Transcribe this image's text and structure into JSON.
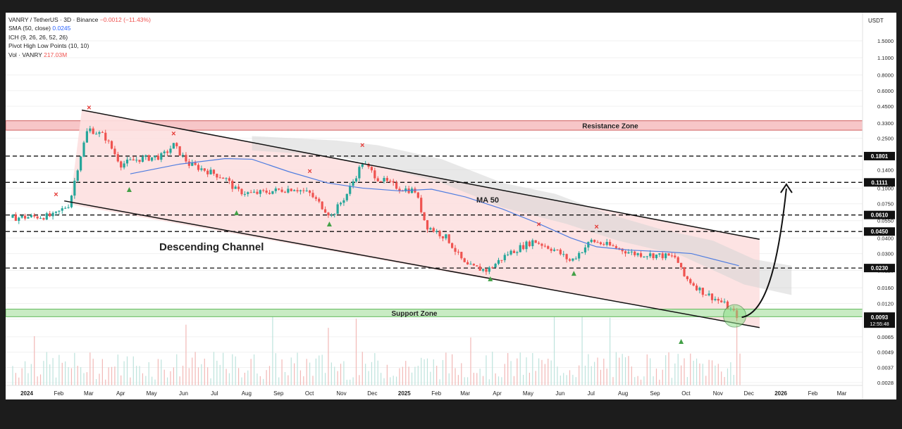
{
  "legend": {
    "symbol_line": "VANRY / TetherUS · 3D · Binance",
    "change": "−0.0012 (−11.43%)",
    "sma_label": "SMA (50, close)",
    "sma_value": "0.0245",
    "ich_label": "ICH (9, 26, 26, 52, 26)",
    "pivot_label": "Pivot High Low Points (10, 10)",
    "vol_label": "Vol · VANRY",
    "vol_value": "217.03M"
  },
  "colors": {
    "up": "#26a69a",
    "down": "#ef5350",
    "sma": "#4f7de0",
    "resistance_fill": "#f7c6c8",
    "support_fill": "#c8ebc3",
    "channel_fill": "#fde0e0",
    "cloud": "#d6d6d6"
  },
  "chart_data": {
    "type": "candlestick",
    "price_axis_unit": "USDT",
    "y_scale": "log",
    "y_ticks": [
      "1.5000",
      "1.1000",
      "0.8000",
      "0.6000",
      "0.4500",
      "0.3300",
      "0.2500",
      "0.1800",
      "0.1400",
      "0.1000",
      "0.0750",
      "0.0550",
      "0.0400",
      "0.0300",
      "0.0220",
      "0.0160",
      "0.0120",
      "0.0090",
      "0.0065",
      "0.0049",
      "0.0037",
      "0.0028"
    ],
    "x_ticks": [
      "2024",
      "Feb",
      "Mar",
      "Apr",
      "May",
      "Jun",
      "Jul",
      "Aug",
      "Sep",
      "Oct",
      "Nov",
      "Dec",
      "2025",
      "Feb",
      "Mar",
      "Apr",
      "May",
      "Jun",
      "Jul",
      "Aug",
      "Sep",
      "Oct",
      "Nov",
      "Dec",
      "2026",
      "Feb",
      "Mar"
    ],
    "x_domain": [
      "2024-01-01",
      "2026-03-28"
    ],
    "levels": [
      {
        "label": "0.1801",
        "value": 0.1801
      },
      {
        "label": "0.1111",
        "value": 0.1111
      },
      {
        "label": "0.0610",
        "value": 0.061
      },
      {
        "label": "0.0450",
        "value": 0.045
      },
      {
        "label": "0.0230",
        "value": 0.023
      }
    ],
    "current_price": {
      "label": "0.0093",
      "value": 0.0093,
      "countdown": "12:55:48"
    },
    "zones": [
      {
        "name": "Resistance Zone",
        "low": 0.29,
        "high": 0.345
      },
      {
        "name": "Support Zone",
        "low": 0.0094,
        "high": 0.0108
      }
    ],
    "channel": {
      "label": "Descending Channel",
      "upper": [
        [
          "2024-03-08",
          0.42
        ],
        [
          "2025-12-25",
          0.039
        ]
      ],
      "lower": [
        [
          "2024-02-20",
          0.079
        ],
        [
          "2025-12-25",
          0.0077
        ]
      ]
    },
    "ma_label": "MA 50",
    "sma50": [
      [
        "2024-04-24",
        0.13
      ],
      [
        "2024-06-10",
        0.155
      ],
      [
        "2024-07-25",
        0.172
      ],
      [
        "2024-08-20",
        0.17
      ],
      [
        "2024-09-25",
        0.135
      ],
      [
        "2024-11-01",
        0.11
      ],
      [
        "2024-12-05",
        0.1
      ],
      [
        "2025-01-10",
        0.095
      ],
      [
        "2025-02-10",
        0.098
      ],
      [
        "2025-03-15",
        0.085
      ],
      [
        "2025-04-20",
        0.068
      ],
      [
        "2025-05-25",
        0.052
      ],
      [
        "2025-06-25",
        0.04
      ],
      [
        "2025-07-20",
        0.034
      ],
      [
        "2025-08-20",
        0.032
      ],
      [
        "2025-09-25",
        0.031
      ],
      [
        "2025-10-20",
        0.03
      ],
      [
        "2025-12-05",
        0.024
      ]
    ],
    "series": [
      {
        "name": "price",
        "values": [
          [
            "2024-01-01",
            0.058
          ],
          [
            "2024-02-10",
            0.06
          ],
          [
            "2024-02-25",
            0.075
          ],
          [
            "2024-03-05",
            0.16
          ],
          [
            "2024-03-14",
            0.3
          ],
          [
            "2024-03-30",
            0.26
          ],
          [
            "2024-04-15",
            0.155
          ],
          [
            "2024-05-01",
            0.17
          ],
          [
            "2024-05-25",
            0.18
          ],
          [
            "2024-06-05",
            0.22
          ],
          [
            "2024-06-20",
            0.155
          ],
          [
            "2024-07-05",
            0.14
          ],
          [
            "2024-07-25",
            0.12
          ],
          [
            "2024-08-05",
            0.095
          ],
          [
            "2024-08-20",
            0.09
          ],
          [
            "2024-09-10",
            0.095
          ],
          [
            "2024-09-30",
            0.1
          ],
          [
            "2024-10-15",
            0.09
          ],
          [
            "2024-11-05",
            0.06
          ],
          [
            "2024-11-20",
            0.09
          ],
          [
            "2024-12-05",
            0.16
          ],
          [
            "2024-12-20",
            0.12
          ],
          [
            "2025-01-10",
            0.1
          ],
          [
            "2025-01-25",
            0.095
          ],
          [
            "2025-02-05",
            0.05
          ],
          [
            "2025-02-25",
            0.04
          ],
          [
            "2025-03-15",
            0.024
          ],
          [
            "2025-04-05",
            0.022
          ],
          [
            "2025-04-25",
            0.03
          ],
          [
            "2025-05-20",
            0.038
          ],
          [
            "2025-06-10",
            0.032
          ],
          [
            "2025-06-25",
            0.026
          ],
          [
            "2025-07-15",
            0.038
          ],
          [
            "2025-08-05",
            0.034
          ],
          [
            "2025-08-25",
            0.03
          ],
          [
            "2025-09-20",
            0.029
          ],
          [
            "2025-10-05",
            0.028
          ],
          [
            "2025-10-12",
            0.02
          ],
          [
            "2025-10-30",
            0.015
          ],
          [
            "2025-11-20",
            0.012
          ],
          [
            "2025-12-05",
            0.0093
          ]
        ]
      }
    ],
    "pivot_highs": [
      [
        "2024-02-12",
        0.085
      ],
      [
        "2024-03-15",
        0.42
      ],
      [
        "2024-06-05",
        0.26
      ],
      [
        "2024-10-15",
        0.13
      ],
      [
        "2024-12-05",
        0.21
      ],
      [
        "2025-05-25",
        0.049
      ],
      [
        "2025-07-20",
        0.047
      ]
    ],
    "pivot_lows": [
      [
        "2024-04-23",
        0.098
      ],
      [
        "2024-08-05",
        0.064
      ],
      [
        "2024-11-03",
        0.052
      ],
      [
        "2025-04-08",
        0.019
      ],
      [
        "2025-06-28",
        0.021
      ],
      [
        "2025-10-10",
        0.006
      ]
    ],
    "projection": {
      "from": [
        "2025-12-05",
        0.0093
      ],
      "to": [
        "2026-01-20",
        0.11
      ]
    },
    "volume": {
      "label": "Vol · VANRY",
      "last": "217.03M"
    }
  }
}
